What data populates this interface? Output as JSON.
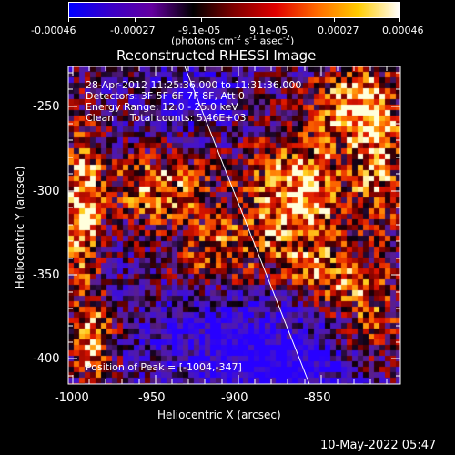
{
  "colorbar": {
    "tick_labels": [
      "-0.00046",
      "-0.00027",
      "-9.1e-05",
      "9.1e-05",
      "0.00027",
      "0.00046"
    ],
    "units": "(photons cm",
    "units_exp1": "-2",
    "units_mid": " s",
    "units_exp2": "-1",
    "units_tail": " asec",
    "units_exp3": "-2",
    "units_close": ")",
    "color_stops": [
      "#0000ff",
      "#3a00c8",
      "#6400a0",
      "#000000",
      "#800000",
      "#e00000",
      "#ff6a00",
      "#ffcc00",
      "#ffffff"
    ]
  },
  "title": "Reconstructed RHESSI Image",
  "info": {
    "line1": "28-Apr-2012 11:25:36.000 to 11:31:36.000",
    "line2": "Detectors: 3F 5F 6F 7F 8F, Att 0",
    "line3": "Energy Range: 12.0 - 25.0 keV",
    "line4": "Clean     Total counts: 5.46E+03"
  },
  "peak_label": "Position of Peak = [-1004,-347]",
  "xaxis": {
    "label": "Heliocentric X (arcsec)",
    "ticks": [
      "-1000",
      "-950",
      "-900",
      "-850"
    ]
  },
  "yaxis": {
    "label": "Heliocentric Y (arcsec)",
    "ticks": [
      "-250",
      "-300",
      "-350",
      "-400"
    ]
  },
  "timestamp": "10-May-2022 05:47",
  "colors": {
    "background": "#000000",
    "foreground": "#ffffff",
    "limb": "#ffffff"
  }
}
